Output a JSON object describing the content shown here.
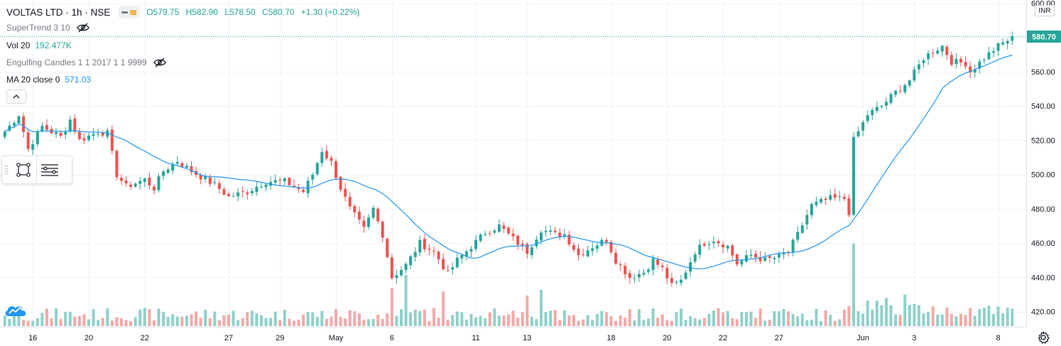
{
  "header": {
    "symbol": "VOLTAS LTD · 1h · NSE",
    "ohlc": {
      "open": "O579.75",
      "high": "H582.90",
      "low": "L578.50",
      "close": "C580.70",
      "change": "+1.30 (+0.22%)"
    }
  },
  "indicators": [
    {
      "name": "SuperTrend 3 10",
      "value": "",
      "hidden": true
    },
    {
      "name": "Vol 20",
      "value": "192.477K",
      "hidden": false
    },
    {
      "name": "Engulfing Candles 1 1 2017 1 1 9999",
      "value": "",
      "hidden": true
    },
    {
      "name": "MA 20 close 0",
      "value": "571.03",
      "hidden": false
    }
  ],
  "colors": {
    "up": "#26a69a",
    "down": "#ef5350",
    "ma": "#2196f3",
    "vol_up": "#8fd1cb",
    "vol_down": "#f4a9a7",
    "last_price_bg": "#26a69a"
  },
  "icons": {
    "collapse": "chevron-up-icon",
    "eye": "eye-off-icon",
    "toolbox_1": "rectangle-tool-icon",
    "toolbox_2": "lines-tool-icon",
    "logo": "tradingview-cloud-icon",
    "settings": "gear-icon"
  },
  "chart_data": {
    "type": "candlestick",
    "currency": "INR",
    "last_price": "580.70",
    "ylim": [
      413,
      603
    ],
    "y_ticks": [
      "600.00",
      "580.00",
      "560.00",
      "540.00",
      "520.00",
      "500.00",
      "480.00",
      "460.00",
      "440.00",
      "420.00"
    ],
    "y_tick_values": [
      600,
      580,
      560,
      540,
      520,
      500,
      480,
      460,
      440,
      420
    ],
    "x_ticks": [
      "16",
      "20",
      "22",
      "27",
      "29",
      "May",
      "6",
      "11",
      "13",
      "18",
      "20",
      "22",
      "27",
      "Jun",
      "3",
      "8"
    ],
    "x_tick_bars": [
      6,
      18,
      30,
      48,
      59,
      71,
      83,
      101,
      112,
      130,
      142,
      154,
      166,
      184,
      195,
      213
    ],
    "close_anchors": [
      [
        0,
        525
      ],
      [
        3,
        535
      ],
      [
        5,
        515
      ],
      [
        8,
        528
      ],
      [
        12,
        522
      ],
      [
        14,
        532
      ],
      [
        16,
        520
      ],
      [
        20,
        525
      ],
      [
        22,
        524
      ],
      [
        24,
        500
      ],
      [
        26,
        493
      ],
      [
        30,
        497
      ],
      [
        32,
        492
      ],
      [
        34,
        502
      ],
      [
        37,
        508
      ],
      [
        40,
        502
      ],
      [
        45,
        494
      ],
      [
        48,
        487
      ],
      [
        52,
        490
      ],
      [
        56,
        496
      ],
      [
        60,
        496
      ],
      [
        64,
        490
      ],
      [
        66,
        500
      ],
      [
        68,
        514
      ],
      [
        70,
        507
      ],
      [
        72,
        492
      ],
      [
        74,
        480
      ],
      [
        77,
        468
      ],
      [
        79,
        480
      ],
      [
        81,
        465
      ],
      [
        83,
        440
      ],
      [
        86,
        447
      ],
      [
        89,
        460
      ],
      [
        92,
        455
      ],
      [
        95,
        442
      ],
      [
        97,
        450
      ],
      [
        100,
        458
      ],
      [
        103,
        466
      ],
      [
        106,
        470
      ],
      [
        108,
        465
      ],
      [
        112,
        455
      ],
      [
        115,
        468
      ],
      [
        118,
        465
      ],
      [
        120,
        465
      ],
      [
        123,
        453
      ],
      [
        126,
        458
      ],
      [
        129,
        462
      ],
      [
        131,
        450
      ],
      [
        134,
        440
      ],
      [
        137,
        443
      ],
      [
        139,
        450
      ],
      [
        141,
        445
      ],
      [
        143,
        435
      ],
      [
        145,
        438
      ],
      [
        148,
        455
      ],
      [
        150,
        460
      ],
      [
        152,
        462
      ],
      [
        155,
        458
      ],
      [
        157,
        448
      ],
      [
        160,
        453
      ],
      [
        163,
        450
      ],
      [
        166,
        452
      ],
      [
        168,
        455
      ],
      [
        170,
        465
      ],
      [
        173,
        482
      ],
      [
        177,
        486
      ],
      [
        180,
        486
      ],
      [
        181,
        478
      ],
      [
        182,
        520
      ],
      [
        185,
        535
      ],
      [
        188,
        540
      ],
      [
        191,
        548
      ],
      [
        194,
        555
      ],
      [
        197,
        568
      ],
      [
        199,
        572
      ],
      [
        201,
        575
      ],
      [
        203,
        566
      ],
      [
        206,
        565
      ],
      [
        207,
        560
      ],
      [
        210,
        568
      ],
      [
        213,
        575
      ],
      [
        216,
        580
      ]
    ],
    "volume_max": 10,
    "volume_spikes": [
      [
        182,
        10
      ],
      [
        86,
        6.2
      ],
      [
        83,
        4.6
      ],
      [
        115,
        4.4
      ],
      [
        94,
        4.2
      ],
      [
        112,
        3.7
      ],
      [
        193,
        3.8
      ],
      [
        185,
        3.1
      ],
      [
        187,
        3.1
      ],
      [
        189,
        3.4
      ]
    ]
  }
}
